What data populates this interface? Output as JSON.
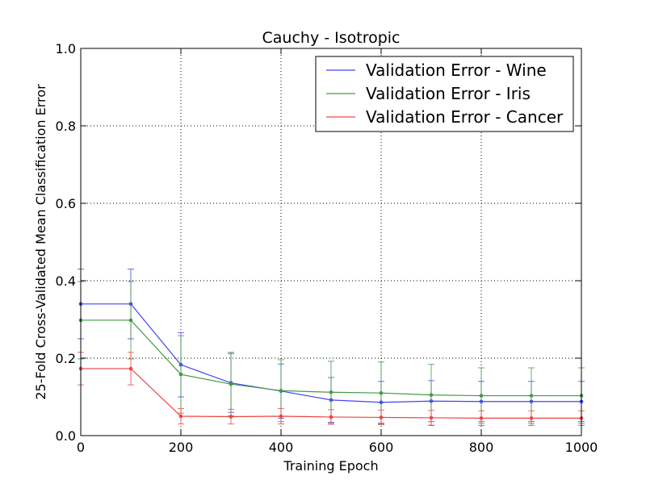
{
  "chart_data": {
    "type": "line",
    "title": "Cauchy - Isotropic",
    "xlabel": "Training Epoch",
    "ylabel": "25-Fold Cross-Validated Mean Classification Error",
    "xlim": [
      0,
      1000
    ],
    "ylim": [
      0,
      1.0
    ],
    "xticks": [
      0,
      200,
      400,
      600,
      800,
      1000
    ],
    "yticks": [
      0.0,
      0.2,
      0.4,
      0.6,
      0.8,
      1.0
    ],
    "xtick_labels": [
      "0",
      "200",
      "400",
      "600",
      "800",
      "1000"
    ],
    "ytick_labels": [
      "0.0",
      "0.2",
      "0.4",
      "0.6",
      "0.8",
      "1.0"
    ],
    "grid": true,
    "legend_position": "top-right",
    "x": [
      0,
      100,
      200,
      300,
      400,
      500,
      600,
      700,
      800,
      900,
      1000
    ],
    "series": [
      {
        "name": "Validation Error - Wine",
        "color": "#4444ee",
        "values": [
          0.34,
          0.34,
          0.183,
          0.136,
          0.115,
          0.092,
          0.086,
          0.089,
          0.088,
          0.088,
          0.088
        ],
        "errors": [
          0.09,
          0.09,
          0.083,
          0.076,
          0.07,
          0.058,
          0.054,
          0.053,
          0.052,
          0.052,
          0.052
        ]
      },
      {
        "name": "Validation Error - Iris",
        "color": "#449944",
        "values": [
          0.298,
          0.298,
          0.158,
          0.133,
          0.116,
          0.112,
          0.11,
          0.105,
          0.103,
          0.103,
          0.103
        ],
        "errors": [
          0.1,
          0.1,
          0.1,
          0.082,
          0.08,
          0.08,
          0.08,
          0.079,
          0.072,
          0.072,
          0.072
        ]
      },
      {
        "name": "Validation Error - Cancer",
        "color": "#ee4444",
        "values": [
          0.173,
          0.173,
          0.05,
          0.049,
          0.05,
          0.048,
          0.047,
          0.046,
          0.045,
          0.045,
          0.045
        ],
        "errors": [
          0.042,
          0.042,
          0.02,
          0.019,
          0.02,
          0.019,
          0.019,
          0.019,
          0.019,
          0.019,
          0.019
        ]
      }
    ]
  }
}
